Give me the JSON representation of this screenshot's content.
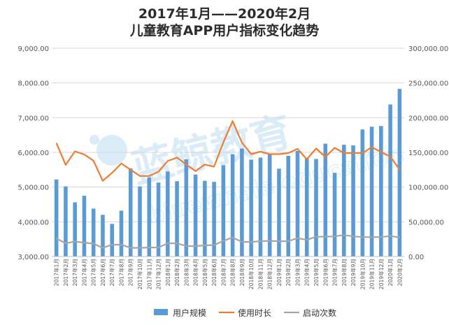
{
  "chart_data": {
    "type": "bar+line",
    "title": "2017年1月——2020年2月",
    "subtitle": "儿童教育APP用户指标变化趋势",
    "categories": [
      "2017年1月",
      "2017年2月",
      "2017年3月",
      "2017年4月",
      "2017年5月",
      "2017年6月",
      "2017年7月",
      "2017年8月",
      "2017年9月",
      "2017年10月",
      "2017年11月",
      "2017年12月",
      "2018年1月",
      "2018年2月",
      "2018年3月",
      "2018年4月",
      "2018年5月",
      "2018年6月",
      "2018年7月",
      "2018年8月",
      "2018年9月",
      "2018年10月",
      "2018年11月",
      "2018年12月",
      "2019年1月",
      "2019年2月",
      "2019年3月",
      "2019年4月",
      "2019年5月",
      "2019年6月",
      "2019年7月",
      "2019年8月",
      "2019年9月",
      "2019年10月",
      "2019年11月",
      "2019年12月",
      "2020年1月",
      "2020年2月"
    ],
    "left_axis": {
      "min": 3000,
      "max": 9000,
      "step": 1000,
      "tick_labels": [
        "3,000.00",
        "4,000.00",
        "5,000.00",
        "6,000.00",
        "7,000.00",
        "8,000.00",
        "9,000.00"
      ]
    },
    "right_axis": {
      "min": 0,
      "max": 300000,
      "step": 50000,
      "tick_labels": [
        "0.00",
        "50,000.00",
        "100,000.00",
        "150,000.00",
        "200,000.00",
        "250,000.00",
        "300,000.00"
      ]
    },
    "series": [
      {
        "name": "用户规模",
        "kind": "bar",
        "axis": "left",
        "color": "#5b9bd5",
        "values": [
          5220,
          5020,
          4560,
          4750,
          4380,
          4200,
          3940,
          4320,
          5540,
          5020,
          5280,
          5130,
          5450,
          5170,
          5800,
          5360,
          5180,
          5150,
          5630,
          5950,
          6110,
          5790,
          5850,
          5960,
          5530,
          5900,
          6040,
          5820,
          5810,
          6250,
          5410,
          6220,
          6200,
          6660,
          6740,
          6760,
          7380,
          7830
        ]
      },
      {
        "name": "使用时长",
        "kind": "line",
        "axis": "left",
        "color": "#ed7d31",
        "values": [
          6270,
          5640,
          6030,
          5940,
          5760,
          5180,
          5410,
          5680,
          5500,
          5320,
          5320,
          5440,
          5750,
          5850,
          5650,
          5460,
          5650,
          5590,
          6290,
          6900,
          6280,
          5950,
          6020,
          5950,
          5950,
          5980,
          6100,
          5800,
          6110,
          5870,
          6130,
          5980,
          5980,
          5980,
          6150,
          6010,
          5880,
          5500
        ]
      },
      {
        "name": "启动次数",
        "kind": "line",
        "axis": "left",
        "color": "#a5a5a5",
        "values": [
          3520,
          3380,
          3430,
          3400,
          3370,
          3250,
          3340,
          3340,
          3250,
          3250,
          3260,
          3260,
          3380,
          3380,
          3300,
          3300,
          3320,
          3330,
          3450,
          3550,
          3420,
          3420,
          3440,
          3450,
          3440,
          3440,
          3530,
          3480,
          3570,
          3570,
          3580,
          3620,
          3580,
          3560,
          3560,
          3560,
          3590,
          3550
        ]
      }
    ],
    "legend": {
      "position": "bottom"
    },
    "grid": true
  },
  "watermark": {
    "text_cn": "蓝鲸教育",
    "text_en": "bluewhale education"
  }
}
